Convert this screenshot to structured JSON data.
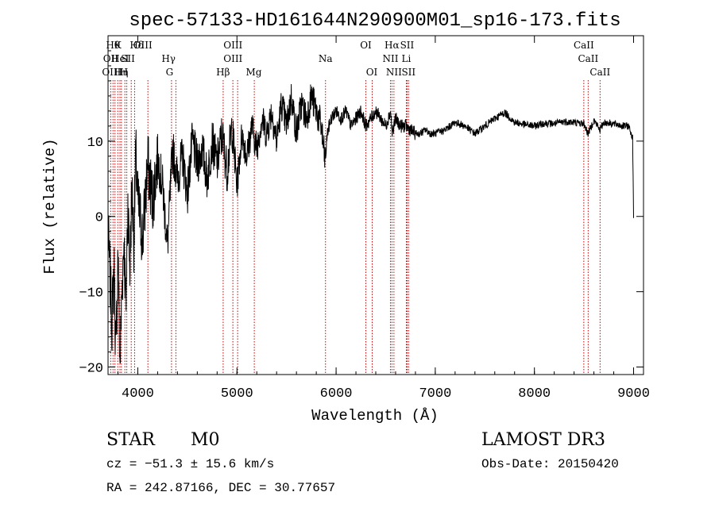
{
  "chart_data": {
    "type": "line",
    "title": "spec-57133-HD161644N290900M01_sp16-173.fits",
    "xlabel": "Wavelength (Å)",
    "ylabel": "Flux (relative)",
    "xlim": [
      3700,
      9100
    ],
    "ylim": [
      -21,
      24
    ],
    "xticks": [
      4000,
      5000,
      6000,
      7000,
      8000,
      9000
    ],
    "yticks": [
      -20,
      -10,
      0,
      10
    ],
    "xtick_labels": [
      "4000",
      "5000",
      "6000",
      "7000",
      "8000",
      "9000"
    ],
    "ytick_labels": [
      "−20",
      "−10",
      "0",
      "10"
    ],
    "grid": false,
    "legend": "none",
    "series": [
      {
        "name": "flux",
        "x": [
          3700,
          3720,
          3740,
          3760,
          3780,
          3800,
          3820,
          3840,
          3860,
          3880,
          3900,
          3920,
          3940,
          3960,
          3980,
          4000,
          4050,
          4100,
          4150,
          4200,
          4250,
          4300,
          4350,
          4400,
          4450,
          4500,
          4550,
          4600,
          4650,
          4700,
          4750,
          4800,
          4850,
          4900,
          4950,
          5000,
          5050,
          5100,
          5150,
          5200,
          5250,
          5300,
          5350,
          5400,
          5450,
          5500,
          5550,
          5600,
          5650,
          5700,
          5750,
          5800,
          5850,
          5890,
          5910,
          5950,
          6000,
          6050,
          6100,
          6150,
          6200,
          6250,
          6300,
          6350,
          6400,
          6450,
          6500,
          6550,
          6565,
          6600,
          6650,
          6700,
          6750,
          6800,
          6850,
          6900,
          6950,
          7000,
          7100,
          7200,
          7300,
          7400,
          7500,
          7600,
          7700,
          7800,
          7900,
          8000,
          8100,
          8200,
          8300,
          8400,
          8500,
          8540,
          8600,
          8660,
          8700,
          8800,
          8900,
          8950,
          8990,
          9000
        ],
        "y": [
          -2,
          -8,
          -14,
          -6,
          -19,
          -4,
          -20,
          -10,
          -3,
          -12,
          2,
          -7,
          4,
          -3,
          8,
          2,
          -3,
          7,
          2,
          8,
          4,
          -4,
          9,
          5,
          8,
          3,
          10,
          7,
          9,
          5,
          10,
          7,
          11,
          6,
          12,
          4,
          11,
          8,
          12,
          9,
          13,
          11,
          14,
          10,
          15,
          12,
          16,
          11,
          15,
          13,
          16,
          14,
          12,
          7,
          11,
          13,
          14,
          13,
          14,
          12,
          13,
          14,
          12,
          13,
          14,
          13,
          12,
          14,
          11,
          13,
          12,
          12,
          11.5,
          11,
          11,
          11.5,
          11,
          11,
          11.5,
          12.5,
          12,
          11,
          12,
          13,
          13.8,
          12.5,
          12.2,
          12,
          12.4,
          12.3,
          12.6,
          12.5,
          12.3,
          11,
          12.8,
          11.5,
          12.5,
          12.3,
          12,
          12,
          10.5,
          0
        ]
      }
    ],
    "line_labels": [
      {
        "wavelength": 3727,
        "row": 1,
        "label": "OII"
      },
      {
        "wavelength": 3735,
        "row": 2,
        "label": "OIII"
      },
      {
        "wavelength": 3750,
        "row": 0,
        "label": "Hθ"
      },
      {
        "wavelength": 3798,
        "row": 0,
        "label": "K"
      },
      {
        "wavelength": 3822,
        "row": 1,
        "label": "HeI"
      },
      {
        "wavelength": 3833,
        "row": 2,
        "label": "Hη"
      },
      {
        "wavelength": 3860,
        "row": 2,
        "label": "H"
      },
      {
        "wavelength": 3900,
        "row": 1,
        "label": "SII"
      },
      {
        "wavelength": 3990,
        "row": 0,
        "label": "Hδ"
      },
      {
        "wavelength": 4050,
        "row": 0,
        "label": "OIII"
      },
      {
        "wavelength": 4310,
        "row": 1,
        "label": "Hγ"
      },
      {
        "wavelength": 4320,
        "row": 2,
        "label": "G"
      },
      {
        "wavelength": 4860,
        "row": 2,
        "label": "Hβ"
      },
      {
        "wavelength": 4960,
        "row": 0,
        "label": "OIII"
      },
      {
        "wavelength": 4960,
        "row": 1,
        "label": "OIII"
      },
      {
        "wavelength": 5170,
        "row": 2,
        "label": "Mg"
      },
      {
        "wavelength": 5893,
        "row": 1,
        "label": "Na"
      },
      {
        "wavelength": 6300,
        "row": 0,
        "label": "OI"
      },
      {
        "wavelength": 6360,
        "row": 2,
        "label": "OI"
      },
      {
        "wavelength": 6563,
        "row": 0,
        "label": "Hα"
      },
      {
        "wavelength": 6548,
        "row": 1,
        "label": "NII"
      },
      {
        "wavelength": 6583,
        "row": 2,
        "label": "NII"
      },
      {
        "wavelength": 6716,
        "row": 0,
        "label": "SII"
      },
      {
        "wavelength": 6708,
        "row": 1,
        "label": "Li"
      },
      {
        "wavelength": 6731,
        "row": 2,
        "label": "SII"
      },
      {
        "wavelength": 8498,
        "row": 0,
        "label": "CaII"
      },
      {
        "wavelength": 8542,
        "row": 1,
        "label": "CaII"
      },
      {
        "wavelength": 8662,
        "row": 2,
        "label": "CaII"
      }
    ],
    "line_markers": [
      3727,
      3750,
      3770,
      3798,
      3820,
      3835,
      3870,
      3889,
      3934,
      3968,
      4102,
      4340,
      4384,
      4861,
      4959,
      5007,
      5175,
      5893,
      6300,
      6364,
      6548,
      6563,
      6583,
      6708,
      6716,
      6731,
      8498,
      8542,
      8662
    ],
    "marker_color": "#cc0000"
  },
  "info": {
    "object_type": "STAR",
    "subclass": "M0",
    "survey": "LAMOST DR3",
    "cz": "cz = −51.3 ± 15.6 km/s",
    "obs_date": "Obs-Date: 20150420",
    "coords": "RA = 242.87166, DEC =  30.77657"
  }
}
